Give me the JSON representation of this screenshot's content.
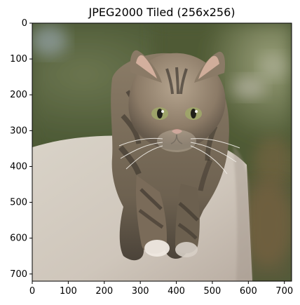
{
  "figure": {
    "title": "JPEG2000 Tiled (256x256)"
  },
  "image": {
    "subject": "tabby kitten walking on a stone ledge",
    "colors": {
      "background_green": "#6f7a4a",
      "background_dark": "#3f3f2a",
      "ledge_light": "#d8d0c6",
      "ledge_shadow": "#b8aea3",
      "fur_brown": "#7a6a58",
      "fur_dark": "#3b342c",
      "fur_light": "#c9b9a3",
      "eye_green": "#9ea36a",
      "ear_pink": "#d7b2a0",
      "nose_pink": "#c8948a"
    }
  },
  "axes": {
    "x_ticks": [
      "0",
      "100",
      "200",
      "300",
      "400",
      "500",
      "600",
      "700"
    ],
    "y_ticks": [
      "0",
      "100",
      "200",
      "300",
      "400",
      "500",
      "600",
      "700"
    ],
    "xlim": [
      0,
      720
    ],
    "ylim": [
      720,
      0
    ]
  }
}
